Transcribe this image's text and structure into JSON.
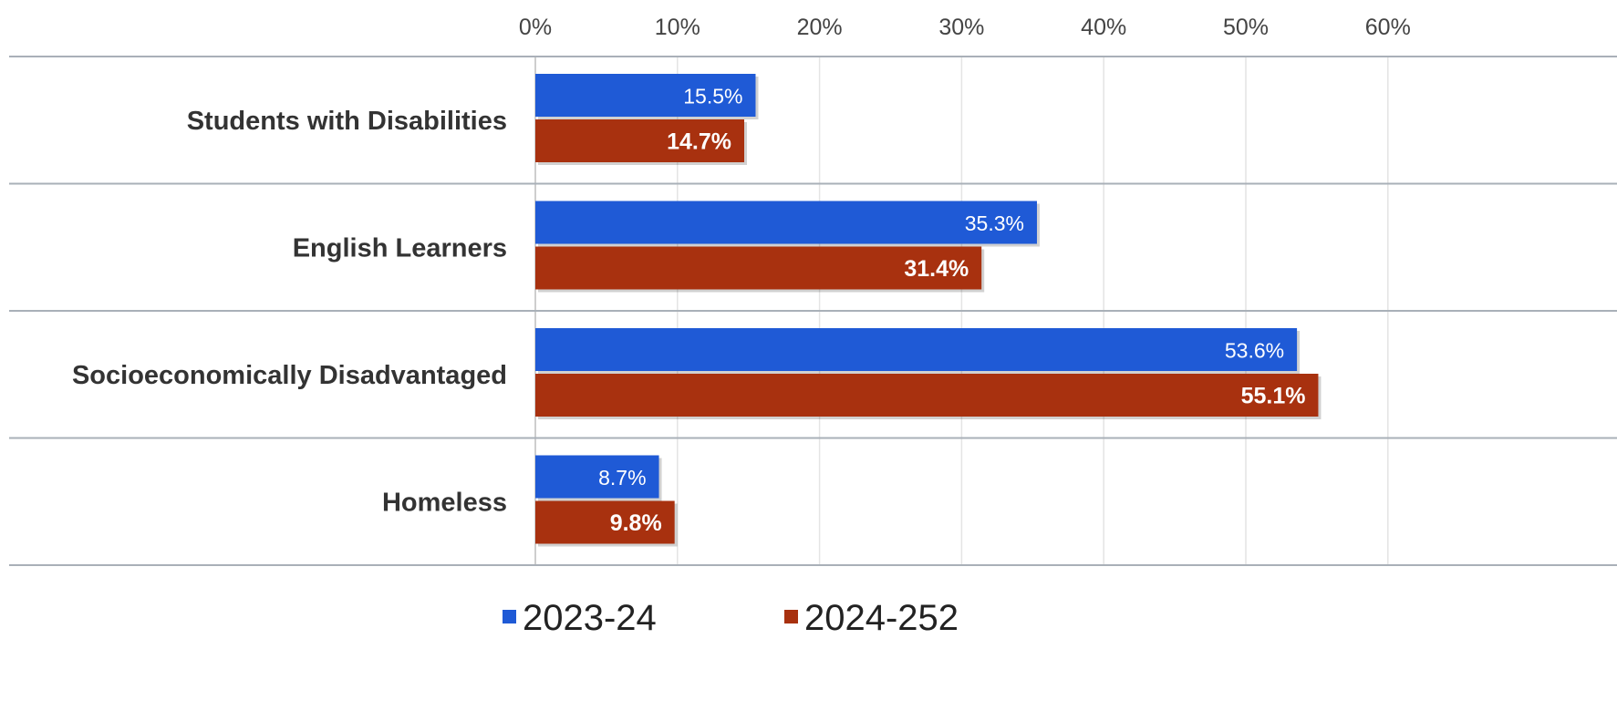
{
  "chart_data": {
    "type": "bar",
    "orientation": "horizontal",
    "title": "",
    "xlabel": "",
    "ylabel": "",
    "categories": [
      "Students with Disabilities",
      "English Learners",
      "Socioeconomically Disadvantaged",
      "Homeless"
    ],
    "series": [
      {
        "name": "2023-24",
        "color": "#1f5ad6",
        "values": [
          15.5,
          35.3,
          53.6,
          8.7
        ],
        "labels": [
          "15.5%",
          "35.3%",
          "53.6%",
          "8.7%"
        ]
      },
      {
        "name": "2024-252",
        "color": "#a8310f",
        "values": [
          14.7,
          31.4,
          55.1,
          9.8
        ],
        "labels": [
          "14.7%",
          "31.4%",
          "55.1%",
          "9.8%"
        ]
      }
    ],
    "xlim": [
      0,
      60
    ],
    "ticks": [
      0,
      10,
      20,
      30,
      40,
      50,
      60
    ],
    "tick_labels": [
      "0%",
      "10%",
      "20%",
      "30%",
      "40%",
      "50%",
      "60%"
    ],
    "axis_position": "top",
    "grid": true,
    "legend": "bottom"
  }
}
